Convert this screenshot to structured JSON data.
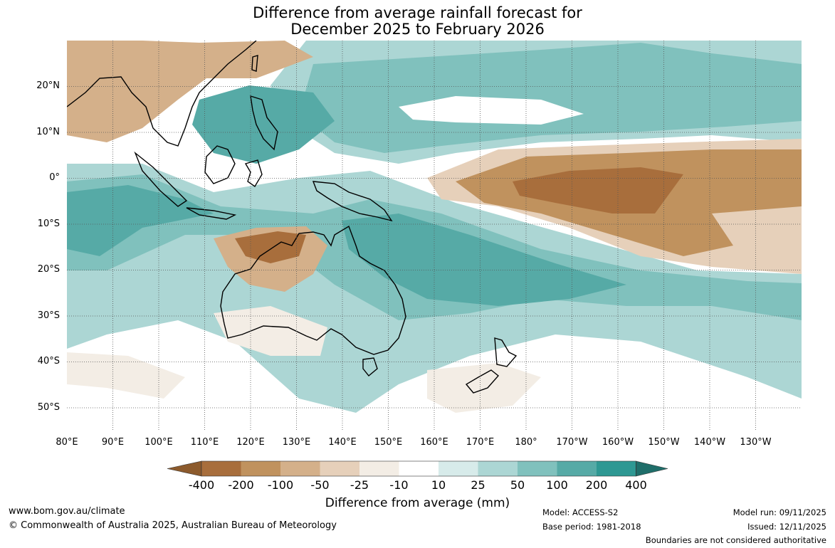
{
  "title": {
    "line1": "Difference from average rainfall forecast for",
    "line2": "December 2025 to February 2026"
  },
  "map": {
    "lon_range": [
      80,
      242
    ],
    "lat_range": [
      -55,
      30
    ],
    "lat_labels": [
      "20°N",
      "10°N",
      "0°",
      "10°S",
      "20°S",
      "30°S",
      "40°S",
      "50°S"
    ],
    "lon_labels": [
      "80°E",
      "90°E",
      "100°E",
      "110°E",
      "120°E",
      "130°E",
      "140°E",
      "150°E",
      "160°E",
      "170°E",
      "180°",
      "170°W",
      "160°W",
      "150°W",
      "140°W",
      "130°W"
    ]
  },
  "colorbar": {
    "ticks": [
      "-400",
      "-200",
      "-100",
      "-50",
      "-25",
      "-10",
      "10",
      "25",
      "50",
      "100",
      "200",
      "400"
    ],
    "colors": {
      "below_400": "#8c5a2c",
      "neg_400_200": "#a86e3c",
      "neg_200_100": "#c0925e",
      "neg_100_50": "#d4b08a",
      "neg_50_25": "#e6d0ba",
      "neg_25_10": "#f3ede5",
      "neutral": "#ffffff",
      "pos_10_25": "#d7ebea",
      "pos_25_50": "#acd6d4",
      "pos_50_100": "#80c1bd",
      "pos_100_200": "#56aaa6",
      "pos_200_400": "#2e9893",
      "above_400": "#1f6e6a"
    },
    "label": "Difference from average (mm)"
  },
  "footer": {
    "website": "www.bom.gov.au/climate",
    "copyright": "© Commonwealth of Australia 2025, Australian Bureau of Meteorology",
    "model": "Model: ACCESS-S2",
    "base_period": "Base period: 1981-2018",
    "model_run": "Model run: 09/11/2025",
    "issued": "Issued: 12/11/2025",
    "disclaimer": "Boundaries are not considered authoritative"
  }
}
